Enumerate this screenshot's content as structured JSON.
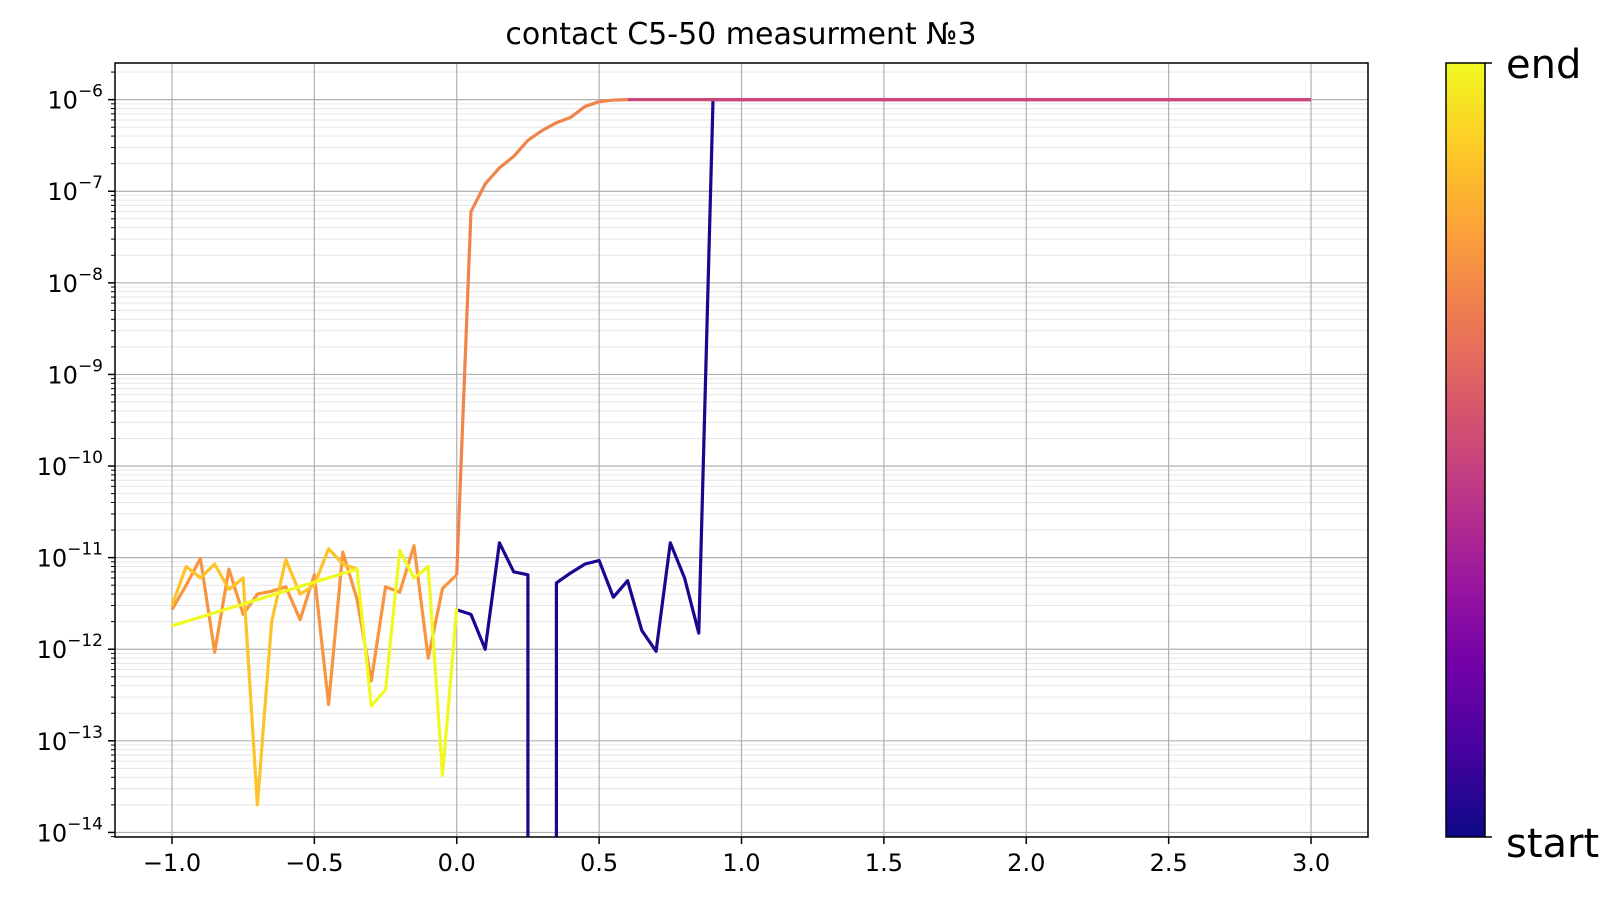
{
  "chart_data": {
    "type": "line",
    "title": "contact C5-50 measurment №3",
    "xlabel": "",
    "ylabel": "",
    "xlim": [
      -1.2,
      3.2
    ],
    "ylim_log10": [
      -14.05,
      13.6
    ],
    "yscale": "log",
    "grid": {
      "major": true,
      "minor_y": true
    },
    "x_ticks": [
      {
        "value": -1.0,
        "label": "−1.0"
      },
      {
        "value": -0.5,
        "label": "−0.5"
      },
      {
        "value": 0.0,
        "label": "0.0"
      },
      {
        "value": 0.5,
        "label": "0.5"
      },
      {
        "value": 1.0,
        "label": "1.0"
      },
      {
        "value": 1.5,
        "label": "1.5"
      },
      {
        "value": 2.0,
        "label": "2.0"
      },
      {
        "value": 2.5,
        "label": "2.5"
      },
      {
        "value": 3.0,
        "label": "3.0"
      }
    ],
    "y_ticks": [
      {
        "exp": -6,
        "base": "10",
        "sup": "−6"
      },
      {
        "exp": -7,
        "base": "10",
        "sup": "−7"
      },
      {
        "exp": -8,
        "base": "10",
        "sup": "−8"
      },
      {
        "exp": -9,
        "base": "10",
        "sup": "−9"
      },
      {
        "exp": -10,
        "base": "10",
        "sup": "−10"
      },
      {
        "exp": -11,
        "base": "10",
        "sup": "−11"
      },
      {
        "exp": -12,
        "base": "10",
        "sup": "−12"
      },
      {
        "exp": -13,
        "base": "10",
        "sup": "−13"
      },
      {
        "exp": -14,
        "base": "10",
        "sup": "−14"
      }
    ],
    "colorbar": {
      "label_top": "end",
      "label_bottom": "start",
      "colormap": "plasma",
      "stops": [
        "#0d0887",
        "#46039f",
        "#7201a8",
        "#9c179e",
        "#bd3786",
        "#d8576b",
        "#ed7953",
        "#fb9f3a",
        "#fdca26",
        "#f0f921"
      ]
    },
    "series": [
      {
        "color": "#1a068f",
        "x": [
          0.0,
          0.05,
          0.1,
          0.15,
          0.2,
          0.25,
          0.25,
          0.35,
          0.35,
          0.4,
          0.45,
          0.5,
          0.55,
          0.6,
          0.65,
          0.7,
          0.75,
          0.8,
          0.85,
          0.9
        ],
        "y": [
          2.7e-12,
          2.4e-12,
          1e-12,
          1.45e-11,
          7e-12,
          6.5e-12,
          8e-15,
          8e-15,
          5.3e-12,
          6.8e-12,
          8.5e-12,
          9.3e-12,
          3.7e-12,
          5.6e-12,
          1.6e-12,
          9.5e-13,
          1.45e-11,
          6e-12,
          1.5e-12,
          1e-06
        ]
      },
      {
        "color": "#8b0aa5",
        "x": [
          0.9,
          1.0,
          1.1,
          1.2,
          1.3,
          1.4,
          1.5,
          1.6,
          1.7,
          1.8,
          1.9,
          2.0,
          2.1,
          2.2,
          2.3,
          2.4,
          2.5,
          2.6,
          2.7,
          2.8,
          2.9,
          3.0
        ],
        "y": [
          1e-06,
          1e-06,
          1e-06,
          1e-06,
          1e-06,
          1e-06,
          1e-06,
          1e-06,
          1e-06,
          1e-06,
          1e-06,
          1e-06,
          1e-06,
          1e-06,
          1e-06,
          1e-06,
          1e-06,
          1e-06,
          1e-06,
          1e-06,
          1e-06,
          1e-06
        ]
      },
      {
        "color": "#cc4778",
        "x": [
          0.6,
          1.0,
          1.5,
          2.0,
          2.5,
          3.0
        ],
        "y": [
          1e-06,
          1e-06,
          1e-06,
          1e-06,
          1e-06,
          1e-06
        ]
      },
      {
        "color": "#f0844b",
        "x": [
          0.0,
          0.05,
          0.1,
          0.15,
          0.2,
          0.25,
          0.3,
          0.35,
          0.4,
          0.45,
          0.5,
          0.55,
          0.6
        ],
        "y": [
          6.5e-12,
          6e-08,
          1.2e-07,
          1.8e-07,
          2.4e-07,
          3.6e-07,
          4.6e-07,
          5.6e-07,
          6.4e-07,
          8.4e-07,
          9.5e-07,
          9.9e-07,
          1e-06
        ]
      },
      {
        "color": "#f89540",
        "x": [
          -1.0,
          -0.95,
          -0.9,
          -0.85,
          -0.8,
          -0.75,
          -0.7,
          -0.65,
          -0.6,
          -0.55,
          -0.5,
          -0.45,
          -0.4,
          -0.35,
          -0.3,
          -0.25,
          -0.2,
          -0.15,
          -0.1,
          -0.05,
          0.0
        ],
        "y": [
          2.7e-12,
          5e-12,
          9.8e-12,
          9.3e-13,
          7.5e-12,
          2.4e-12,
          4e-12,
          4.3e-12,
          4.8e-12,
          2.1e-12,
          6.5e-12,
          2.5e-13,
          1.15e-11,
          3.5e-12,
          4.5e-13,
          4.8e-12,
          4.2e-12,
          1.35e-11,
          8e-13,
          4.6e-12,
          6.5e-12
        ]
      },
      {
        "color": "#fdc328",
        "x": [
          -1.0,
          -0.95,
          -0.9,
          -0.85,
          -0.8,
          -0.75,
          -0.7,
          -0.65,
          -0.6,
          -0.55,
          -0.5,
          -0.45,
          -0.4,
          -0.35
        ],
        "y": [
          3e-12,
          8e-12,
          6e-12,
          8.5e-12,
          4.5e-12,
          6e-12,
          2e-14,
          2e-12,
          9.5e-12,
          4e-12,
          5e-12,
          1.25e-11,
          8.5e-12,
          7.5e-12
        ]
      },
      {
        "color": "#f0f921",
        "x": [
          -1.0,
          -0.35,
          -0.3,
          -0.25,
          -0.2,
          -0.15,
          -0.1,
          -0.05,
          0.0
        ],
        "y": [
          1.8e-12,
          7.5e-12,
          2.4e-13,
          3.6e-13,
          1.2e-11,
          6e-12,
          8e-12,
          4.2e-14,
          2.8e-12
        ]
      }
    ]
  }
}
